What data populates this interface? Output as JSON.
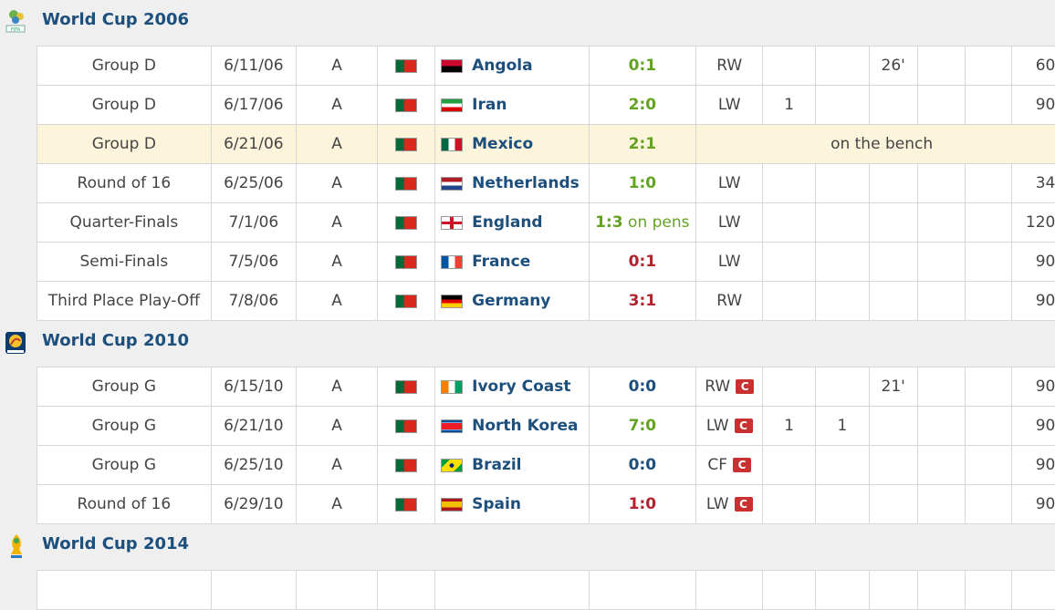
{
  "colors": {
    "header": "#1d4f7d",
    "win": "#63a322",
    "draw": "#1d4f7d",
    "loss": "#b3232f",
    "highlight": "#fdf4dc"
  },
  "sections": [
    {
      "title": "World Cup 2006",
      "logo": "wc2006-logo-icon",
      "rows": [
        {
          "stage": "Group D",
          "date": "6/11/06",
          "venue": "A",
          "opponent": "Angola",
          "result": "0:1",
          "result_type": "win",
          "pos": "RW",
          "captain": false,
          "goals": "",
          "assists": "",
          "yellow": "26'",
          "second_yellow": "",
          "red": "",
          "minutes": "60'"
        },
        {
          "stage": "Group D",
          "date": "6/17/06",
          "venue": "A",
          "opponent": "Iran",
          "result": "2:0",
          "result_type": "win",
          "pos": "LW",
          "captain": false,
          "goals": "1",
          "assists": "",
          "yellow": "",
          "second_yellow": "",
          "red": "",
          "minutes": "90'"
        },
        {
          "stage": "Group D",
          "date": "6/21/06",
          "venue": "A",
          "opponent": "Mexico",
          "result": "2:1",
          "result_type": "win",
          "bench": "on the bench"
        },
        {
          "stage": "Round of 16",
          "date": "6/25/06",
          "venue": "A",
          "opponent": "Netherlands",
          "result": "1:0",
          "result_type": "win",
          "pos": "LW",
          "captain": false,
          "goals": "",
          "assists": "",
          "yellow": "",
          "second_yellow": "",
          "red": "",
          "minutes": "34'"
        },
        {
          "stage": "Quarter-Finals",
          "date": "7/1/06",
          "venue": "A",
          "opponent": "England",
          "result": "1:3",
          "result_suffix": " on pens",
          "result_type": "win",
          "pos": "LW",
          "captain": false,
          "goals": "",
          "assists": "",
          "yellow": "",
          "second_yellow": "",
          "red": "",
          "minutes": "120'"
        },
        {
          "stage": "Semi-Finals",
          "date": "7/5/06",
          "venue": "A",
          "opponent": "France",
          "result": "0:1",
          "result_type": "loss",
          "pos": "LW",
          "captain": false,
          "goals": "",
          "assists": "",
          "yellow": "",
          "second_yellow": "",
          "red": "",
          "minutes": "90'"
        },
        {
          "stage": "Third Place Play-Off",
          "date": "7/8/06",
          "venue": "A",
          "opponent": "Germany",
          "result": "3:1",
          "result_type": "loss",
          "pos": "RW",
          "captain": false,
          "goals": "",
          "assists": "",
          "yellow": "",
          "second_yellow": "",
          "red": "",
          "minutes": "90'"
        }
      ]
    },
    {
      "title": "World Cup 2010",
      "logo": "wc2010-logo-icon",
      "rows": [
        {
          "stage": "Group G",
          "date": "6/15/10",
          "venue": "A",
          "opponent": "Ivory Coast",
          "result": "0:0",
          "result_type": "draw",
          "pos": "RW",
          "captain": true,
          "goals": "",
          "assists": "",
          "yellow": "21'",
          "second_yellow": "",
          "red": "",
          "minutes": "90'"
        },
        {
          "stage": "Group G",
          "date": "6/21/10",
          "venue": "A",
          "opponent": "North Korea",
          "result": "7:0",
          "result_type": "win",
          "pos": "LW",
          "captain": true,
          "goals": "1",
          "assists": "1",
          "yellow": "",
          "second_yellow": "",
          "red": "",
          "minutes": "90'"
        },
        {
          "stage": "Group G",
          "date": "6/25/10",
          "venue": "A",
          "opponent": "Brazil",
          "result": "0:0",
          "result_type": "draw",
          "pos": "CF",
          "captain": true,
          "goals": "",
          "assists": "",
          "yellow": "",
          "second_yellow": "",
          "red": "",
          "minutes": "90'"
        },
        {
          "stage": "Round of 16",
          "date": "6/29/10",
          "venue": "A",
          "opponent": "Spain",
          "result": "1:0",
          "result_type": "loss",
          "pos": "LW",
          "captain": true,
          "goals": "",
          "assists": "",
          "yellow": "",
          "second_yellow": "",
          "red": "",
          "minutes": "90'"
        }
      ]
    },
    {
      "title": "World Cup 2014",
      "logo": "wc2014-logo-icon",
      "rows": []
    }
  ],
  "captain_icon": "C"
}
